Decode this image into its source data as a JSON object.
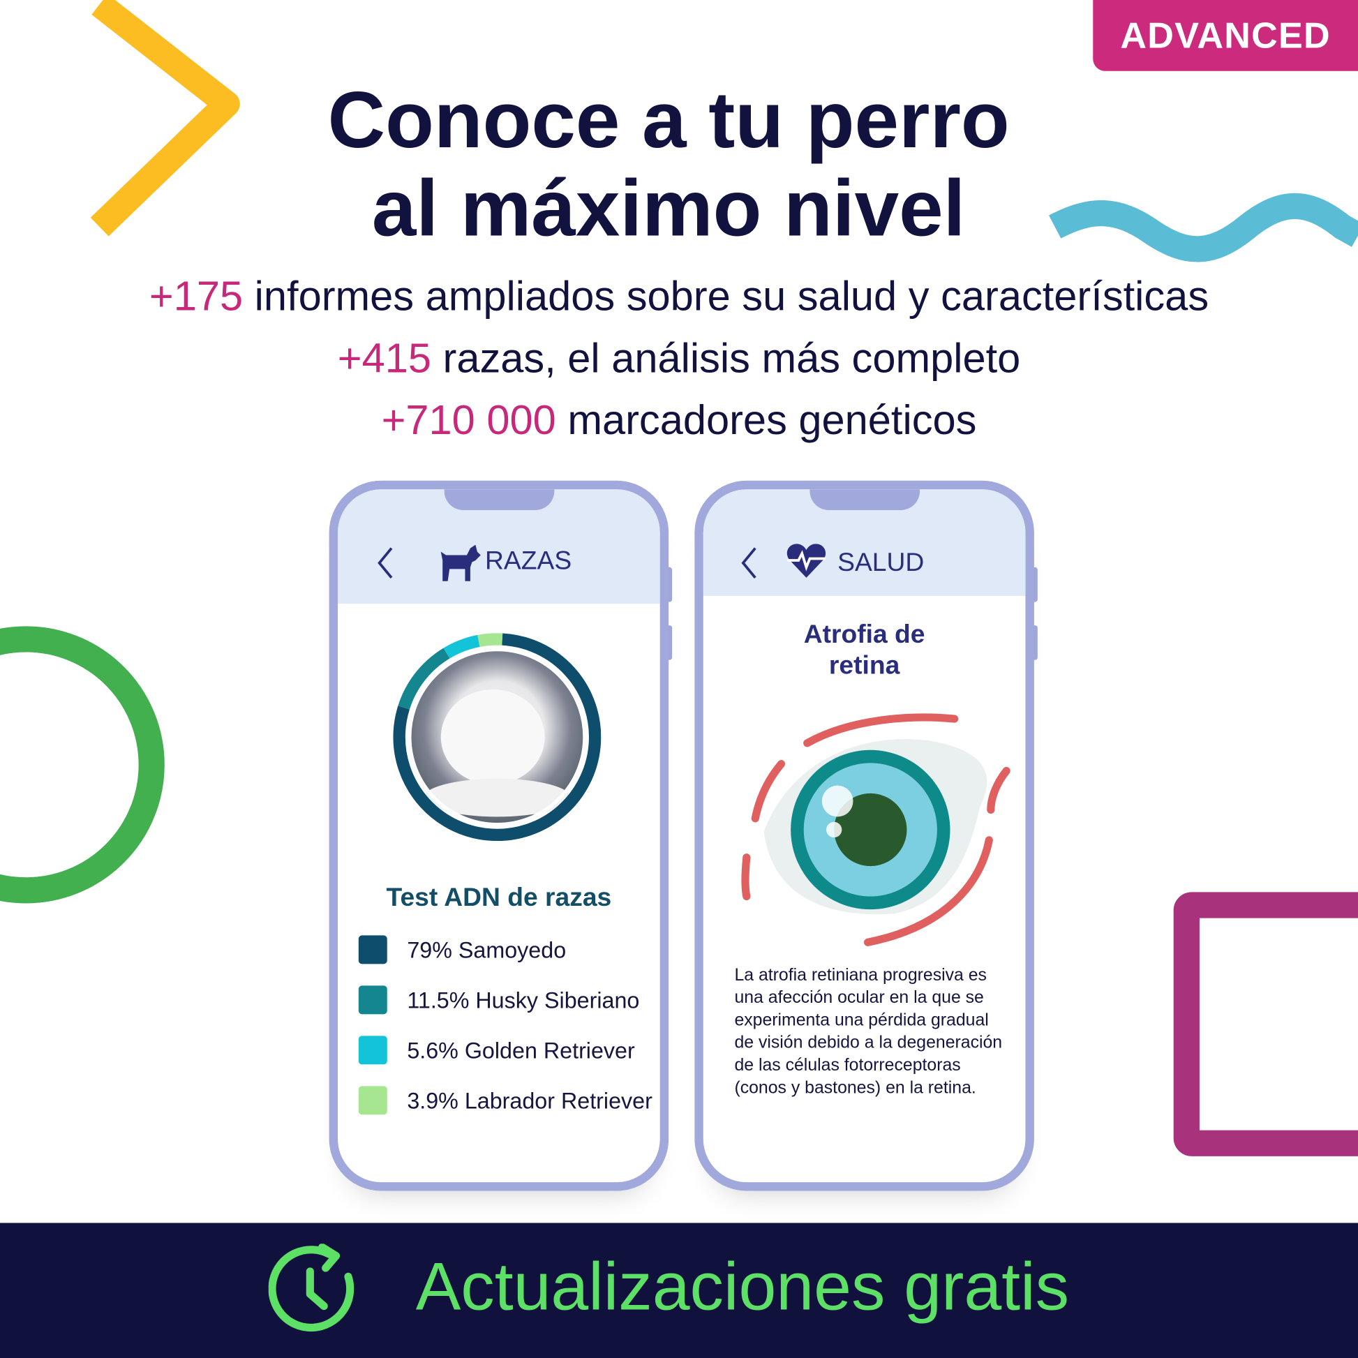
{
  "badge": "ADVANCED",
  "title": {
    "line1": "Conoce a tu perro",
    "line2": "al máximo nivel"
  },
  "stats": [
    {
      "number": "+175",
      "text": " informes ampliados sobre su salud y características"
    },
    {
      "number": "+415",
      "text": " razas, el análisis más completo"
    },
    {
      "number": "+710 000",
      "text": " marcadores genéticos"
    }
  ],
  "phone_breeds": {
    "header": "RAZAS",
    "icon": "dog-icon",
    "section_title": "Test ADN de razas",
    "breeds": [
      {
        "label": "79% Samoyedo",
        "percent": 79,
        "color": "#0e4d6b"
      },
      {
        "label": "11.5% Husky Siberiano",
        "percent": 11.5,
        "color": "#13868f"
      },
      {
        "label": "5.6% Golden Retriever",
        "percent": 5.6,
        "color": "#13c4d8"
      },
      {
        "label": "3.9% Labrador Retriever",
        "percent": 3.9,
        "color": "#a6e690"
      }
    ]
  },
  "phone_health": {
    "header": "SALUD",
    "icon": "heart-pulse-icon",
    "condition_line1": "Atrofia de",
    "condition_line2": "retina",
    "description": "La atrofia retiniana progresiva es una afección ocular en la que se experimenta una pérdida gradual de visión debido a la degeneración de las células fotorreceptoras (conos y bastones) en la retina."
  },
  "footer": {
    "text": "Actualizaciones gratis",
    "icon": "clock-refresh-icon"
  },
  "colors": {
    "accent_pink": "#c8287a",
    "navy": "#11113d",
    "green": "#5ce066",
    "phone_frame": "#a0a8dc"
  }
}
